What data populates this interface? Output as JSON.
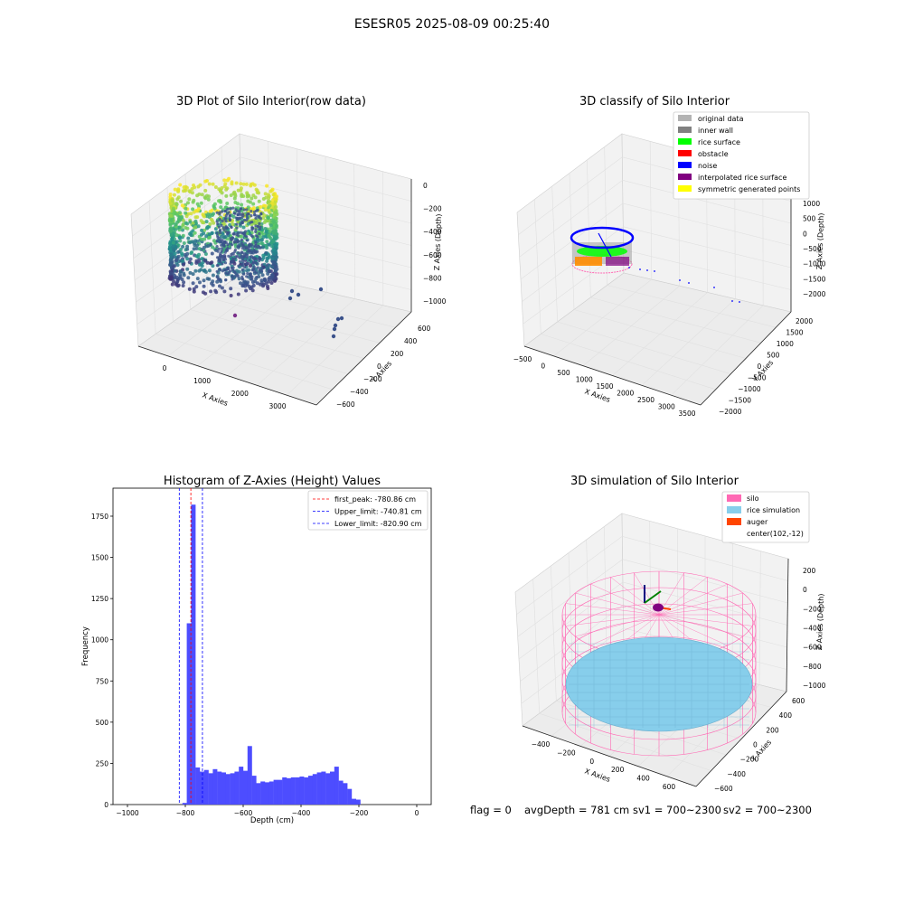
{
  "suptitle": "ESESR05 2025-08-09 00:25:40",
  "footer": {
    "flag": "flag = 0",
    "avg_depth": "avgDepth = 781 cm",
    "sv1": "sv1 = 700~2300",
    "sv2": "sv2 = 700~2300"
  },
  "colors": {
    "hist_bar": "#4d4dff",
    "first_peak": "#ff0000",
    "limits": "#0000ff",
    "silo": "#ff69b4",
    "rice_sim": "#87ceeb",
    "auger": "#ff4500"
  },
  "chart_data": [
    {
      "id": "raw",
      "type": "scatter",
      "title": "3D Plot of Silo Interior(row data)",
      "xlabel": "X Axies",
      "ylabel": "Y Axies",
      "zlabel": "Z Axies (Depth)",
      "x_ticks": [
        "0",
        "1000",
        "2000",
        "3000"
      ],
      "y_ticks": [
        "600",
        "400",
        "200",
        "0",
        "−200",
        "−400",
        "−600"
      ],
      "z_ticks": [
        "0",
        "−200",
        "−400",
        "−600",
        "−800",
        "−1000"
      ],
      "colormap": "viridis"
    },
    {
      "id": "classify",
      "type": "scatter",
      "title": "3D classify of Silo Interior",
      "xlabel": "X Axies",
      "ylabel": "Y Axies",
      "zlabel": "Z Axies (Depth)",
      "x_ticks": [
        "−500",
        "0",
        "500",
        "1000",
        "1500",
        "2000",
        "2500",
        "3000",
        "3500"
      ],
      "y_ticks": [
        "2000",
        "1500",
        "1000",
        "500",
        "0",
        "−500",
        "−1000",
        "−1500",
        "−2000"
      ],
      "z_ticks": [
        "1000",
        "500",
        "0",
        "−500",
        "−1000",
        "−1500",
        "−2000"
      ],
      "legend_position": "top-right",
      "legend": [
        {
          "label": "original data",
          "color": "#b3b3b3"
        },
        {
          "label": "inner wall",
          "color": "#808080"
        },
        {
          "label": "rice surface",
          "color": "#00ff00"
        },
        {
          "label": "obstacle",
          "color": "#ff0000"
        },
        {
          "label": "noise",
          "color": "#0000ff"
        },
        {
          "label": "interpolated rice surface",
          "color": "#800080"
        },
        {
          "label": "symmetric generated points",
          "color": "#ffff00"
        }
      ]
    },
    {
      "id": "hist",
      "type": "bar",
      "title": "Histogram of Z-Axies (Height) Values",
      "xlabel": "Depth (cm)",
      "ylabel": "Frequency",
      "xlim": [
        -1050,
        50
      ],
      "ylim": [
        0,
        1920
      ],
      "x_ticks": [
        -1000,
        -800,
        -600,
        -400,
        -200,
        0
      ],
      "y_ticks": [
        0,
        250,
        500,
        750,
        1000,
        1250,
        1500,
        1750
      ],
      "bin_start": -810,
      "bin_width": 15,
      "values": [
        10,
        1100,
        1820,
        225,
        200,
        210,
        190,
        215,
        200,
        195,
        185,
        190,
        200,
        230,
        205,
        355,
        175,
        130,
        140,
        135,
        140,
        150,
        150,
        165,
        160,
        165,
        165,
        170,
        165,
        175,
        185,
        195,
        200,
        190,
        200,
        230,
        145,
        130,
        95,
        35,
        30
      ],
      "legend_position": "top-right",
      "lines": [
        {
          "label": "first_peak: -780.86 cm",
          "x": -780.86,
          "color": "#ff0000"
        },
        {
          "label": "Upper_limit: -740.81 cm",
          "x": -740.81,
          "color": "#0000ff"
        },
        {
          "label": "Lower_limit: -820.90 cm",
          "x": -820.9,
          "color": "#0000ff"
        }
      ]
    },
    {
      "id": "sim",
      "type": "scatter",
      "title": "3D simulation of Silo Interior",
      "xlabel": "X Axies",
      "ylabel": "Y Axies",
      "zlabel": "Z Axies (Depth)",
      "x_ticks": [
        "−400",
        "−200",
        "0",
        "200",
        "400",
        "600"
      ],
      "y_ticks": [
        "600",
        "400",
        "200",
        "0",
        "−200",
        "−400",
        "−600"
      ],
      "z_ticks": [
        "200",
        "0",
        "−200",
        "−400",
        "−600",
        "−800",
        "−1000"
      ],
      "legend_position": "top-right",
      "legend": [
        {
          "label": "silo",
          "color": "#ff69b4"
        },
        {
          "label": "rice simulation",
          "color": "#87ceeb"
        },
        {
          "label": "auger",
          "color": "#ff4500"
        },
        {
          "label": "center(102,-12)",
          "color": ""
        }
      ]
    }
  ]
}
